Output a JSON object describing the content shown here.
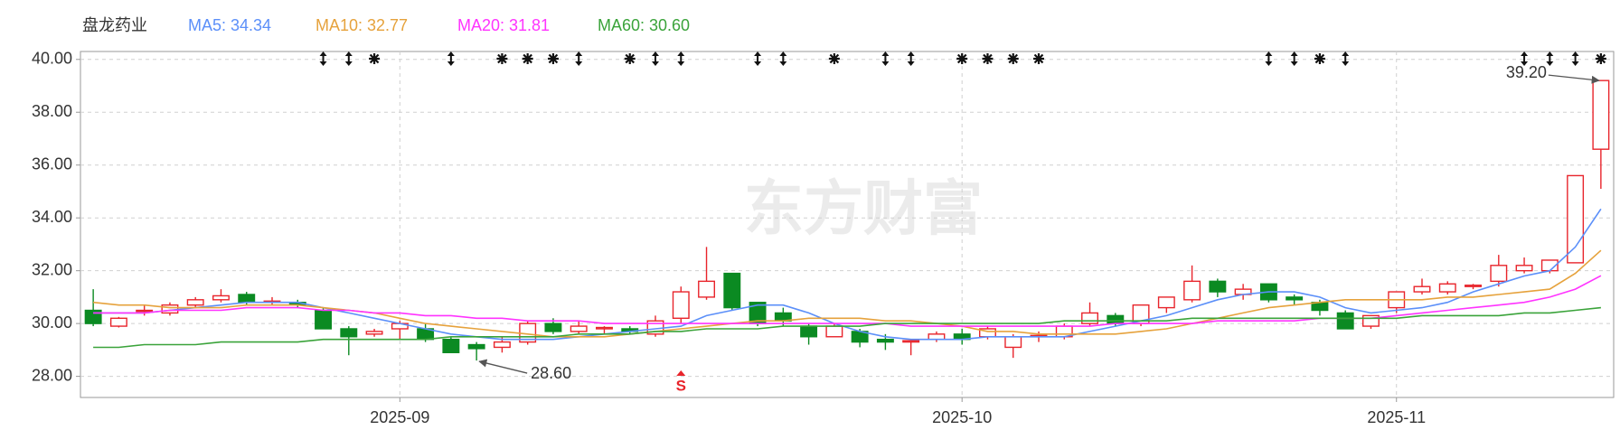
{
  "chart_data": {
    "type": "candlestick",
    "title": "盘龙药业",
    "watermark": "东方财富",
    "signal_label": "S",
    "categories": [
      null,
      null,
      null,
      null,
      null,
      null,
      null,
      null,
      null,
      null,
      null,
      null,
      "2025-09",
      null,
      null,
      null,
      null,
      null,
      null,
      null,
      null,
      null,
      null,
      null,
      null,
      null,
      null,
      null,
      null,
      null,
      null,
      null,
      null,
      null,
      "2025-10",
      null,
      null,
      null,
      null,
      null,
      null,
      null,
      null,
      null,
      null,
      null,
      null,
      null,
      null,
      null,
      null,
      "2025-11",
      null,
      null,
      null,
      null,
      null,
      null,
      null,
      null
    ],
    "open": [
      30.5,
      29.9,
      30.5,
      30.4,
      30.7,
      30.9,
      31.1,
      30.8,
      30.8,
      30.5,
      29.8,
      29.6,
      29.8,
      29.8,
      29.4,
      29.2,
      29.1,
      29.3,
      30.0,
      29.7,
      29.8,
      29.8,
      29.6,
      30.2,
      31.0,
      31.9,
      30.8,
      30.4,
      29.9,
      29.5,
      29.7,
      29.4,
      29.3,
      29.4,
      29.6,
      29.5,
      29.1,
      29.5,
      29.5,
      30.0,
      30.3,
      30.0,
      30.6,
      30.9,
      31.6,
      31.1,
      31.5,
      31.0,
      30.8,
      30.4,
      29.9,
      30.6,
      31.2,
      31.2,
      31.4,
      31.6,
      32.0,
      32.0,
      32.3,
      36.6
    ],
    "high": [
      31.3,
      30.25,
      30.7,
      30.8,
      31.0,
      31.3,
      31.2,
      31.0,
      30.9,
      30.6,
      29.9,
      29.8,
      30.1,
      30.0,
      29.5,
      29.3,
      29.5,
      30.1,
      30.2,
      30.1,
      29.9,
      29.9,
      30.3,
      31.4,
      32.9,
      31.9,
      30.8,
      30.6,
      30.0,
      30.0,
      29.8,
      29.6,
      29.4,
      29.7,
      29.8,
      29.9,
      29.6,
      29.7,
      30.0,
      30.8,
      30.4,
      30.7,
      31.0,
      32.2,
      31.7,
      31.5,
      31.5,
      31.1,
      30.9,
      30.5,
      30.3,
      31.2,
      31.7,
      31.6,
      31.5,
      32.6,
      32.5,
      32.4,
      35.6,
      39.2
    ],
    "low": [
      29.9,
      29.85,
      30.3,
      30.3,
      30.6,
      30.8,
      30.7,
      30.7,
      30.6,
      29.8,
      28.8,
      29.5,
      29.4,
      29.3,
      28.9,
      28.6,
      28.9,
      29.2,
      29.6,
      29.6,
      29.6,
      29.6,
      29.5,
      30.0,
      30.9,
      30.5,
      29.9,
      29.9,
      29.2,
      29.5,
      29.1,
      29.0,
      28.8,
      29.3,
      29.2,
      29.4,
      28.7,
      29.3,
      29.4,
      29.9,
      29.9,
      29.9,
      30.4,
      30.8,
      31.0,
      30.9,
      30.8,
      30.7,
      30.3,
      29.8,
      29.8,
      30.4,
      31.1,
      31.1,
      31.3,
      31.4,
      31.9,
      31.9,
      32.3,
      35.1
    ],
    "close": [
      30.0,
      30.2,
      30.5,
      30.7,
      30.9,
      31.05,
      30.8,
      30.85,
      30.7,
      29.8,
      29.5,
      29.7,
      30.0,
      29.4,
      28.9,
      29.05,
      29.3,
      30.0,
      29.7,
      29.9,
      29.85,
      29.7,
      30.1,
      31.2,
      31.6,
      30.6,
      30.0,
      30.1,
      29.5,
      29.9,
      29.3,
      29.3,
      29.35,
      29.6,
      29.4,
      29.8,
      29.5,
      29.55,
      29.9,
      30.4,
      30.0,
      30.7,
      31.0,
      31.6,
      31.2,
      31.3,
      30.9,
      30.9,
      30.5,
      29.8,
      30.3,
      31.2,
      31.4,
      31.5,
      31.45,
      32.2,
      32.2,
      32.4,
      35.6,
      39.2
    ],
    "up_color": "#e8242b",
    "down_color": "#0b8a22",
    "ma_series": [
      {
        "name": "MA5: 34.34",
        "color": "#5b8ff9",
        "values": [
          30.4,
          30.4,
          30.4,
          30.5,
          30.6,
          30.7,
          30.8,
          30.8,
          30.8,
          30.6,
          30.4,
          30.2,
          30.0,
          29.8,
          29.6,
          29.5,
          29.4,
          29.4,
          29.4,
          29.5,
          29.6,
          29.7,
          29.8,
          29.9,
          30.3,
          30.5,
          30.7,
          30.7,
          30.4,
          30.0,
          29.7,
          29.5,
          29.4,
          29.4,
          29.4,
          29.5,
          29.5,
          29.5,
          29.5,
          29.7,
          29.9,
          30.1,
          30.3,
          30.6,
          30.9,
          31.1,
          31.2,
          31.2,
          31.0,
          30.6,
          30.4,
          30.5,
          30.6,
          30.8,
          31.2,
          31.5,
          31.8,
          32.0,
          32.9,
          34.34
        ]
      },
      {
        "name": "MA10: 32.77",
        "color": "#e6a23c",
        "values": [
          30.8,
          30.7,
          30.7,
          30.6,
          30.6,
          30.6,
          30.7,
          30.7,
          30.7,
          30.6,
          30.5,
          30.4,
          30.2,
          30.0,
          29.9,
          29.8,
          29.7,
          29.6,
          29.5,
          29.5,
          29.5,
          29.6,
          29.7,
          29.8,
          29.9,
          30.0,
          30.1,
          30.1,
          30.2,
          30.2,
          30.2,
          30.1,
          30.1,
          30.0,
          29.9,
          29.7,
          29.7,
          29.6,
          29.6,
          29.6,
          29.6,
          29.7,
          29.8,
          30.0,
          30.2,
          30.4,
          30.6,
          30.7,
          30.8,
          30.9,
          30.9,
          30.9,
          30.9,
          31.0,
          31.0,
          31.1,
          31.2,
          31.3,
          31.9,
          32.77
        ]
      },
      {
        "name": "MA20: 31.81",
        "color": "#ff33ff",
        "values": [
          30.4,
          30.4,
          30.4,
          30.5,
          30.5,
          30.5,
          30.6,
          30.6,
          30.6,
          30.5,
          30.5,
          30.4,
          30.4,
          30.3,
          30.3,
          30.2,
          30.2,
          30.1,
          30.1,
          30.1,
          30.0,
          30.0,
          30.0,
          30.0,
          30.0,
          30.0,
          30.0,
          30.0,
          30.0,
          30.0,
          30.0,
          30.0,
          29.9,
          29.9,
          29.9,
          29.9,
          29.9,
          29.9,
          29.9,
          29.9,
          30.0,
          30.0,
          30.0,
          30.0,
          30.1,
          30.1,
          30.1,
          30.1,
          30.2,
          30.2,
          30.2,
          30.3,
          30.4,
          30.5,
          30.6,
          30.7,
          30.8,
          31.0,
          31.3,
          31.81
        ]
      },
      {
        "name": "MA60: 30.60",
        "color": "#3aa33a",
        "values": [
          29.1,
          29.1,
          29.2,
          29.2,
          29.2,
          29.3,
          29.3,
          29.3,
          29.3,
          29.4,
          29.4,
          29.4,
          29.4,
          29.4,
          29.5,
          29.5,
          29.5,
          29.5,
          29.5,
          29.6,
          29.6,
          29.6,
          29.7,
          29.7,
          29.8,
          29.8,
          29.8,
          29.9,
          29.9,
          29.9,
          29.9,
          30.0,
          30.0,
          30.0,
          30.0,
          30.0,
          30.0,
          30.0,
          30.1,
          30.1,
          30.1,
          30.1,
          30.1,
          30.2,
          30.2,
          30.2,
          30.2,
          30.2,
          30.2,
          30.2,
          30.2,
          30.2,
          30.3,
          30.3,
          30.3,
          30.3,
          30.4,
          30.4,
          30.5,
          30.6
        ]
      }
    ],
    "annotations": [
      {
        "text": "39.20",
        "value": 39.2
      },
      {
        "text": "28.60",
        "value": 28.6
      }
    ],
    "ylim": [
      27.2,
      40.3
    ],
    "yticks": [
      {
        "value": 28,
        "label": "28.00"
      },
      {
        "value": 30,
        "label": "30.00"
      },
      {
        "value": 32,
        "label": "32.00"
      },
      {
        "value": 34,
        "label": "34.00"
      },
      {
        "value": 36,
        "label": "36.00"
      },
      {
        "value": 38,
        "label": "38.00"
      },
      {
        "value": 40,
        "label": "40.00"
      }
    ],
    "grid": true
  }
}
